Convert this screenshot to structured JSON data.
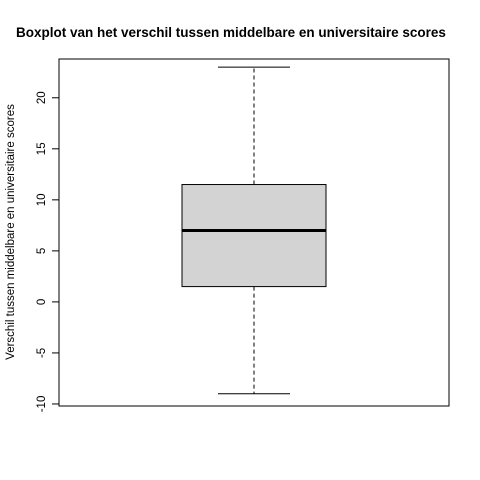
{
  "chart_data": {
    "type": "boxplot",
    "title": "Boxplot van het verschil tussen middelbare en universitaire scores",
    "xlabel": "",
    "ylabel": "Verschil tussen middelbare en universitaire scores",
    "ylim": [
      -10.2,
      23.8
    ],
    "yticks": [
      -10,
      -5,
      0,
      5,
      10,
      15,
      20
    ],
    "ytick_labels": [
      "-10",
      "-5",
      "0",
      "5",
      "10",
      "15",
      "20"
    ],
    "box": {
      "whisker_low": -9,
      "q1": 1.5,
      "median": 7,
      "q3": 11.5,
      "whisker_high": 23
    },
    "box_fill": "#d3d3d3",
    "line_color": "#000000",
    "grid": false
  }
}
